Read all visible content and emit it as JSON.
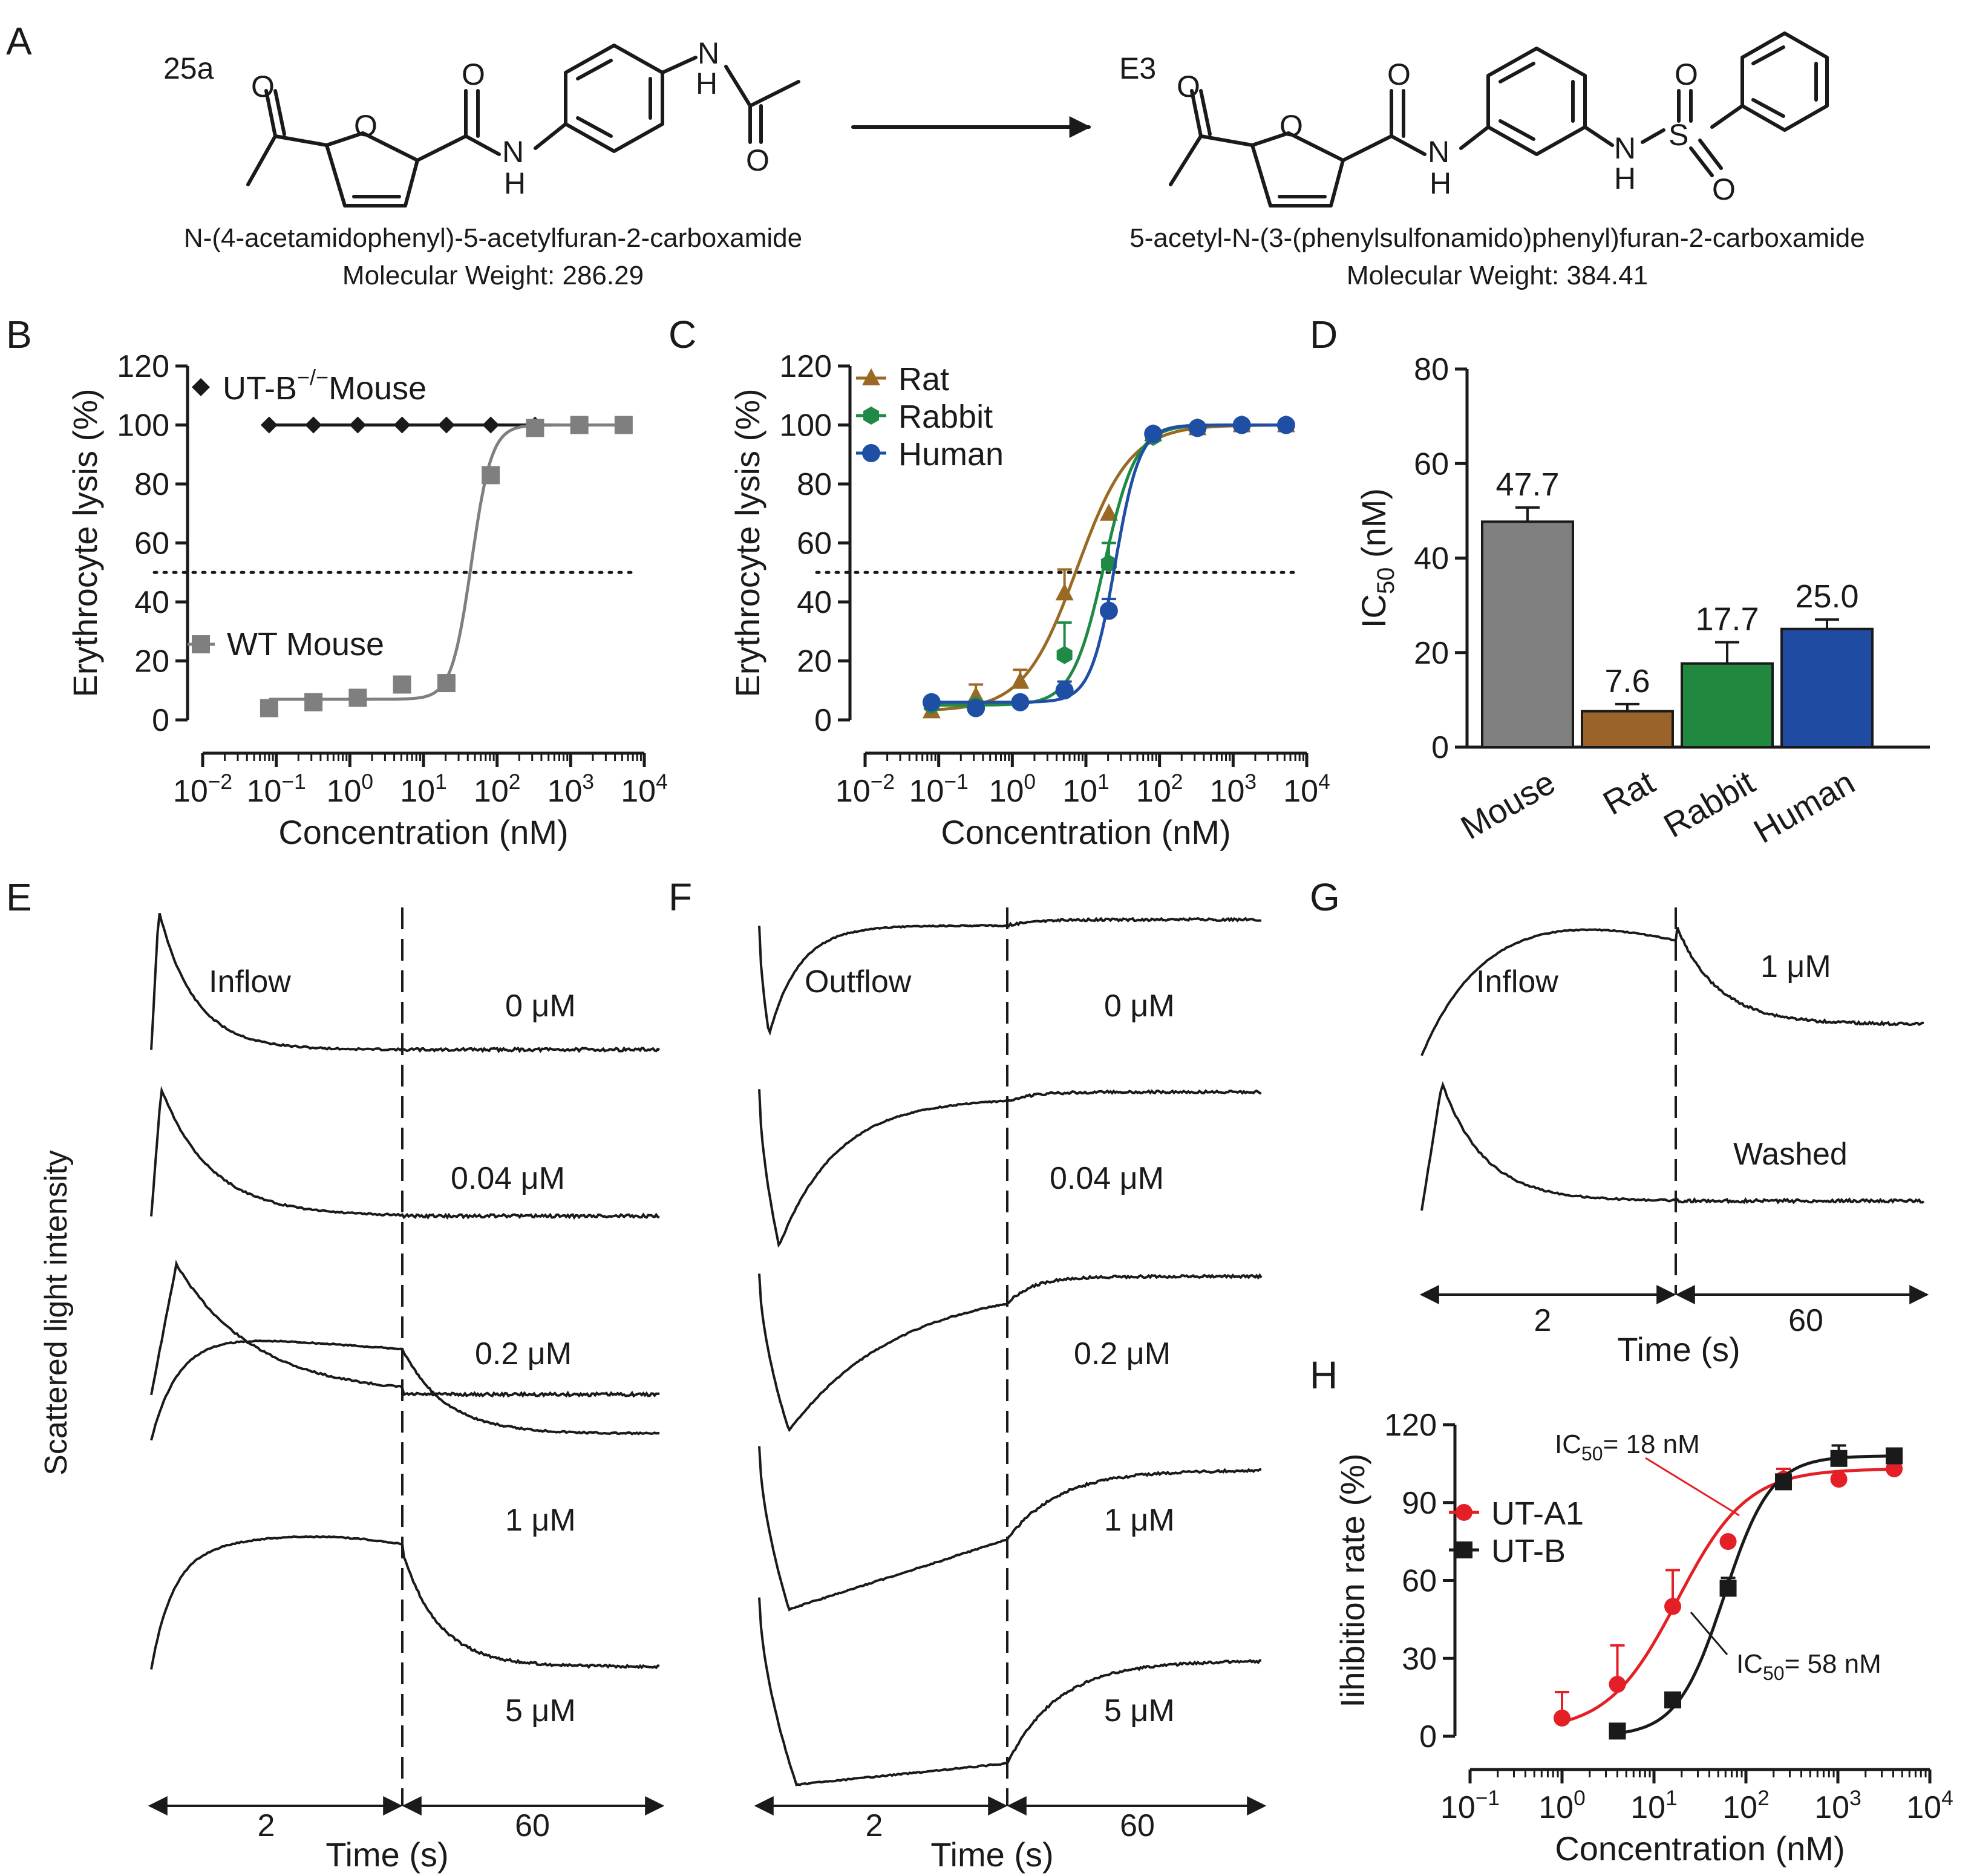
{
  "panel_letters": {
    "A": "A",
    "B": "B",
    "C": "C",
    "D": "D",
    "E": "E",
    "F": "F",
    "G": "G",
    "H": "H"
  },
  "panel_a": {
    "left": {
      "id": "25a",
      "name": "N-(4-acetamidophenyl)-5-acetylfuran-2-carboxamide",
      "mw": "Molecular Weight: 286.29"
    },
    "right": {
      "id": "E3",
      "name": "5-acetyl-N-(3-(phenylsulfonamido)phenyl)furan-2-carboxamide",
      "mw": "Molecular Weight: 384.41"
    },
    "atoms": {
      "O": "O",
      "N": "N",
      "H": "H",
      "S": "S"
    }
  },
  "colors": {
    "black": "#1a1a1a",
    "gray": "#7f7f7f",
    "rat": "#9a6a24",
    "rabbit": "#1f8a45",
    "human": "#1f4fa5",
    "ut_a1": "#e41f26",
    "mouse_bar": "#808080",
    "rat_bar": "#99632a",
    "rabbit_bar": "#20883f",
    "human_bar": "#1f4ca2"
  },
  "log_ticks": {
    "base": "10",
    "exps_bc": [
      "−2",
      "−1",
      "0",
      "1",
      "2",
      "3",
      "4"
    ],
    "exps_h": [
      "−1",
      "0",
      "1",
      "2",
      "3",
      "4"
    ]
  },
  "chart_data": [
    {
      "panel": "B",
      "type": "scatter",
      "ylabel": "Erythrocyte lysis (%)",
      "xlabel": "Concentration (nM)",
      "xscale": "log",
      "xlim": [
        0.01,
        10000
      ],
      "ylim": [
        0,
        120
      ],
      "yticks": [
        "0",
        "20",
        "40",
        "60",
        "80",
        "100",
        "120"
      ],
      "reference_line": 50,
      "series": [
        {
          "name": "UT-B",
          "name_sup": "−/−",
          "name_tail": "Mouse",
          "marker": "diamond",
          "color": "#1a1a1a",
          "x": [
            0.08,
            0.32,
            1.28,
            5.12,
            20.5,
            82,
            328,
            1311,
            5243
          ],
          "y": [
            100,
            100,
            100,
            100,
            100,
            100,
            100,
            100,
            100
          ]
        },
        {
          "name": "WT Mouse",
          "marker": "square",
          "color": "#7f7f7f",
          "x": [
            0.08,
            0.32,
            1.28,
            5.12,
            20.5,
            82,
            328,
            1311,
            5243
          ],
          "y": [
            4,
            6,
            7.5,
            12,
            12.5,
            83,
            99,
            100,
            100
          ]
        }
      ]
    },
    {
      "panel": "C",
      "type": "scatter",
      "ylabel": "Erythrocyte lysis (%)",
      "xlabel": "Concentration (nM)",
      "xscale": "log",
      "xlim": [
        0.01,
        10000
      ],
      "ylim": [
        0,
        120
      ],
      "yticks": [
        "0",
        "20",
        "40",
        "60",
        "80",
        "100",
        "120"
      ],
      "reference_line": 50,
      "series": [
        {
          "name": "Rat",
          "marker": "triangle",
          "color": "#9a6a24",
          "x": [
            0.08,
            0.32,
            1.28,
            5.12,
            20.5,
            82,
            328,
            1311,
            5243
          ],
          "y": [
            3,
            8,
            13,
            43,
            70,
            97,
            99,
            100,
            100
          ],
          "err": [
            0,
            4,
            4,
            8,
            0,
            0,
            0,
            0,
            0
          ]
        },
        {
          "name": "Rabbit",
          "marker": "hexagon",
          "color": "#1f8a45",
          "x": [
            0.08,
            0.32,
            1.28,
            5.12,
            20.5,
            82,
            328,
            1311,
            5243
          ],
          "y": [
            5,
            5,
            6,
            22,
            53,
            96,
            99,
            100,
            100
          ],
          "err": [
            0,
            0,
            0,
            11,
            7,
            0,
            0,
            0,
            0
          ]
        },
        {
          "name": "Human",
          "marker": "circle",
          "color": "#1f4fa5",
          "x": [
            0.08,
            0.32,
            1.28,
            5.12,
            20.5,
            82,
            328,
            1311,
            5243
          ],
          "y": [
            6,
            4,
            6,
            10,
            37,
            97,
            99,
            100,
            100
          ],
          "err": [
            0,
            0,
            0,
            3,
            4,
            0,
            0,
            0,
            0
          ]
        }
      ]
    },
    {
      "panel": "D",
      "type": "bar",
      "ylabel": "IC",
      "ylabel_sub": "50",
      "ylabel_tail": " (nM)",
      "ylim": [
        0,
        80
      ],
      "yticks": [
        "0",
        "20",
        "40",
        "60",
        "80"
      ],
      "categories": [
        "Mouse",
        "Rat",
        "Rabbit",
        "Human"
      ],
      "values": [
        47.7,
        7.6,
        17.7,
        25.0
      ],
      "errors": [
        3,
        1.5,
        4.5,
        2
      ],
      "labels": [
        "47.7",
        "7.6",
        "17.7",
        "25.0"
      ]
    },
    {
      "panel": "H",
      "type": "scatter",
      "ylabel": "Iihibition rate (%)",
      "xlabel": "Concentration (nM)",
      "xscale": "log",
      "xlim": [
        0.1,
        10000
      ],
      "ylim": [
        0,
        120
      ],
      "yticks": [
        "0",
        "30",
        "60",
        "90",
        "120"
      ],
      "series": [
        {
          "name": "UT-A1",
          "marker": "circle",
          "color": "#e41f26",
          "x": [
            1,
            4,
            16,
            64,
            256,
            1024,
            4096
          ],
          "y": [
            7,
            20,
            50,
            75,
            99,
            99,
            103
          ],
          "err": [
            10,
            15,
            14,
            0,
            4,
            0,
            0
          ]
        },
        {
          "name": "UT-B",
          "marker": "square",
          "color": "#1a1a1a",
          "x": [
            4,
            16,
            64,
            256,
            1024,
            4096
          ],
          "y": [
            2,
            14,
            57,
            98,
            107,
            108
          ],
          "err": [
            0,
            0,
            4,
            0,
            5,
            0
          ]
        }
      ],
      "annotations": [
        {
          "pre": "IC",
          "sub": "50",
          "post": "= 18 nM",
          "color": "#e41f26"
        },
        {
          "pre": "IC",
          "sub": "50",
          "post": "= 58 nM",
          "color": "#1a1a1a"
        }
      ]
    }
  ],
  "panel_e": {
    "title": "Inflow",
    "labels": [
      "0 μM",
      "0.04 μM",
      "0.2 μM",
      "1 μM",
      "5 μM"
    ],
    "axis": {
      "left": "2",
      "right": "60",
      "title": "Time (s)"
    }
  },
  "panel_f": {
    "title": "Outflow",
    "labels": [
      "0 μM",
      "0.04 μM",
      "0.2 μM",
      "1 μM",
      "5 μM"
    ],
    "axis": {
      "left": "2",
      "right": "60",
      "title": "Time (s)"
    }
  },
  "panel_g": {
    "title": "Inflow",
    "labels": [
      "1 μM",
      "Washed"
    ],
    "axis": {
      "left": "2",
      "right": "60",
      "title": "Time (s)"
    }
  },
  "ylabel_traces": "Scattered light intensity"
}
